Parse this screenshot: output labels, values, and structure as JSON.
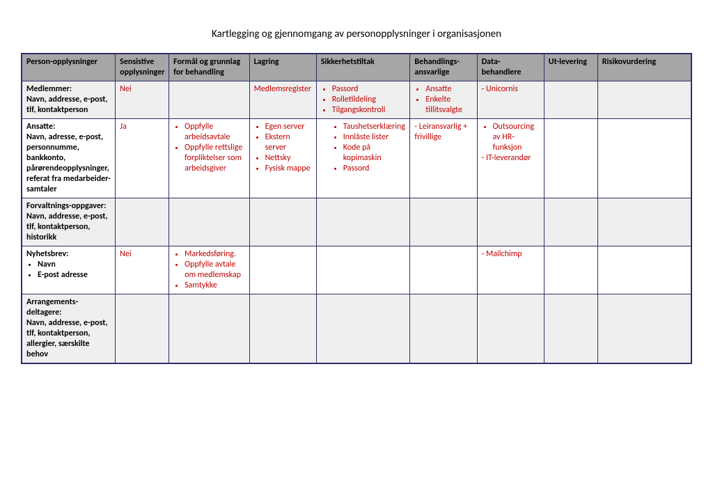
{
  "title": "Kartlegging og gjennomgang av personopplysninger i organisasjonen",
  "table": {
    "columns": [
      "Person-opplysninger",
      "Sensistive opplysninger",
      "Formål og grunnlag for behandling",
      "Lagring",
      "Sikkerhetstiltak",
      "Behandlings-ansvarlige",
      "Data-behandlere",
      "Ut-levering",
      "Risikovurdering"
    ],
    "col_widths_pct": [
      14,
      8,
      12,
      10,
      14,
      10,
      10,
      8,
      14
    ],
    "header_bg": "#a6a6a6",
    "alt_bg": "#efefef",
    "border_color": "#2d2d6e",
    "red": "#c00000",
    "rows": [
      {
        "alt": true,
        "label_bold": "Medlemmer:",
        "label_rest": "Navn, addresse, e-post, tlf, kontaktperson",
        "sensitive": "Nei",
        "purpose_bullets": [],
        "storage_text": "Medlemsregister",
        "security_bullets": [
          "Passord",
          "Rolletildeling",
          "Tilgangskontroll"
        ],
        "responsible_bullets": [
          "Ansatte",
          "Enkelte tillitsvalgte"
        ],
        "processors_plain": "- Unicornis",
        "processors_bullets": [],
        "delivery": "",
        "risk": ""
      },
      {
        "alt": false,
        "label_bold": "Ansatte:",
        "label_rest": "Navn, adresse, e-post, personnumme, bankkonto, pårørendeopplysninger, referat fra medarbeider-samtaler",
        "sensitive": "Ja",
        "purpose_bullets": [
          "Oppfylle arbeidsavtale",
          "Oppfylle rettslige forpliktelser som arbeidsgiver"
        ],
        "storage_bullets": [
          "Egen server",
          "Ekstern server",
          "Nettsky",
          "Fysisk mappe"
        ],
        "security_bullets": [
          "Taushetserklæring",
          "Innlåste lister",
          "Kode på kopimaskin",
          "Passord"
        ],
        "responsible_text": "- Leiransvarlig + frivillige",
        "processors_bullets": [
          "Outsourcing av HR-funksjon"
        ],
        "processors_plain_after": "- IT-leverandør",
        "delivery": "",
        "risk": ""
      },
      {
        "alt": true,
        "label_bold": "Forvaltnings-oppgaver:",
        "label_rest": "Navn, addresse, e-post, tlf, kontaktperson, historikk",
        "sensitive": "",
        "purpose_bullets": [],
        "storage_text": "",
        "security_bullets": [],
        "responsible_bullets": [],
        "processors_plain": "",
        "delivery": "",
        "risk": ""
      },
      {
        "alt": false,
        "label_bold": "Nyhetsbrev:",
        "label_bullets": [
          "Navn",
          "E-post adresse"
        ],
        "sensitive": "Nei",
        "purpose_bullets": [
          "Markedsføring.",
          "Oppfylle avtale om medlemskap",
          "Samtykke"
        ],
        "storage_text": "",
        "security_bullets": [],
        "responsible_bullets": [],
        "processors_plain": "- Mailchimp",
        "delivery": "",
        "risk": ""
      },
      {
        "alt": true,
        "label_bold": "Arrangements-deltagere:",
        "label_rest": "Navn, addresse, e-post, tlf, kontaktperson, allergier, særskilte behov",
        "sensitive": "",
        "purpose_bullets": [],
        "storage_text": "",
        "security_bullets": [],
        "responsible_bullets": [],
        "processors_plain": "",
        "delivery": "",
        "risk": ""
      }
    ]
  }
}
